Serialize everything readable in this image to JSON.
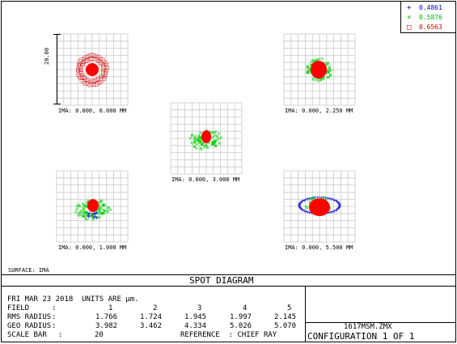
{
  "legend": [
    {
      "marker": "+",
      "value": "0.4861",
      "color": "#0000cc"
    },
    {
      "marker": "×",
      "value": "0.5876",
      "color": "#00bb00"
    },
    {
      "marker": "□",
      "value": "0.6563",
      "color": "#cc0000"
    }
  ],
  "scale_label": "20.00",
  "spots": [
    {
      "label": "IMA: 0.000, 0.000 MM"
    },
    {
      "label": "IMA: 0.000, 2.250 MM"
    },
    {
      "label": "IMA: 0.000, 3.000 MM"
    },
    {
      "label": "IMA: 0.000, 1.000 MM"
    },
    {
      "label": "IMA: 0.000, 5.500 MM"
    }
  ],
  "surface_label": "SURFACE: IMA",
  "diagram_title": "SPOT DIAGRAM",
  "info": {
    "date_line": "FRI MAR 23 2018  UNITS ARE µm.",
    "field_label": "FIELD",
    "fields": [
      "1",
      "2",
      "3",
      "4",
      "5"
    ],
    "rms_label": "RMS RADIUS",
    "rms": [
      "1.766",
      "1.724",
      "1.945",
      "1.997",
      "2.145"
    ],
    "geo_label": "GEO RADIUS",
    "geo": [
      "3.982",
      "3.462",
      "4.334",
      "5.026",
      "5.070"
    ],
    "scale_label": "SCALE BAR",
    "scale_value": "20",
    "reference": "REFERENCE  : CHIEF RAY"
  },
  "file_name": "1617MSM.ZMX",
  "configuration": "CONFIGURATION 1 OF 1"
}
